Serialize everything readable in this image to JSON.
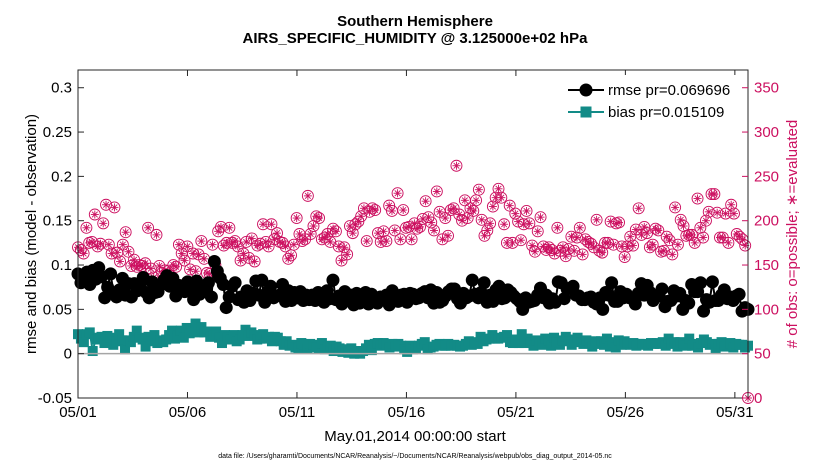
{
  "chart_data": {
    "type": "line",
    "title": "Southern Hemisphere",
    "subtitle": "AIRS_SPECIFIC_HUMIDITY @ 3.125000e+02 hPa",
    "xlabel": "May.01,2014 00:00:00 start",
    "ylabel": "rmse and bias (model - observation)",
    "ylabel_right": "# of obs: o=possible; ∗=evaluated",
    "footnote": "data file: /Users/gharamti/Documents/NCAR/Reanalysis/~/Documents/NCAR/Reanalysis/webpub/obs_diag_output_2014-05.nc",
    "xlim": [
      1,
      31.6
    ],
    "ylim": [
      -0.05,
      0.32
    ],
    "ylim_right": [
      0,
      370
    ],
    "x_ticks": [
      1,
      6,
      11,
      16,
      21,
      26,
      31
    ],
    "x_tick_labels": [
      "05/01",
      "05/06",
      "05/11",
      "05/16",
      "05/21",
      "05/26",
      "05/31"
    ],
    "y_ticks": [
      -0.05,
      0,
      0.05,
      0.1,
      0.15,
      0.2,
      0.25,
      0.3
    ],
    "y_tick_labels": [
      "-0.05",
      "0",
      "0.05",
      "0.1",
      "0.15",
      "0.2",
      "0.25",
      "0.3"
    ],
    "y_ticks_right": [
      0,
      50,
      100,
      150,
      200,
      250,
      300,
      350
    ],
    "y_tick_labels_right": [
      "0",
      "50",
      "100",
      "150",
      "200",
      "250",
      "300",
      "350"
    ],
    "legend_position": "top-right",
    "series": [
      {
        "name": "rmse pr=0.069696",
        "color": "#000000",
        "marker": "circle",
        "values": [
          0.09,
          0.08,
          0.086,
          0.092,
          0.078,
          0.094,
          0.084,
          0.097,
          0.087,
          0.063,
          0.075,
          0.09,
          0.068,
          0.064,
          0.072,
          0.085,
          0.066,
          0.079,
          0.064,
          0.079,
          0.071,
          0.078,
          0.086,
          0.069,
          0.063,
          0.081,
          0.069,
          0.07,
          0.078,
          0.083,
          0.088,
          0.076,
          0.085,
          0.065,
          0.077,
          0.071,
          0.07,
          0.081,
          0.073,
          0.061,
          0.082,
          0.067,
          0.074,
          0.07,
          0.08,
          0.064,
          0.104,
          0.093,
          0.085,
          0.078,
          0.052,
          0.064,
          0.076,
          0.08,
          0.061,
          0.064,
          0.058,
          0.071,
          0.06,
          0.068,
          0.082,
          0.066,
          0.083,
          0.058,
          0.07,
          0.076,
          0.063,
          0.065,
          0.066,
          0.078,
          0.059,
          0.071,
          0.06,
          0.069,
          0.063,
          0.07,
          0.06,
          0.066,
          0.061,
          0.066,
          0.06,
          0.069,
          0.067,
          0.058,
          0.071,
          0.062,
          0.083,
          0.061,
          0.065,
          0.056,
          0.07,
          0.062,
          0.066,
          0.055,
          0.068,
          0.057,
          0.064,
          0.069,
          0.056,
          0.067,
          0.059,
          0.057,
          0.064,
          0.063,
          0.066,
          0.055,
          0.071,
          0.063,
          0.059,
          0.066,
          0.067,
          0.058,
          0.068,
          0.067,
          0.062,
          0.063,
          0.068,
          0.07,
          0.063,
          0.072,
          0.057,
          0.069,
          0.058,
          0.06,
          0.065,
          0.07,
          0.073,
          0.073,
          0.062,
          0.057,
          0.068,
          0.063,
          0.065,
          0.083,
          0.067,
          0.063,
          0.069,
          0.08,
          0.058,
          0.066,
          0.059,
          0.072,
          0.076,
          0.062,
          0.063,
          0.072,
          0.069,
          0.065,
          0.062,
          0.059,
          0.05,
          0.063,
          0.058,
          0.059,
          0.06,
          0.066,
          0.074,
          0.063,
          0.066,
          0.057,
          0.062,
          0.058,
          0.081,
          0.08,
          0.062,
          0.073,
          0.074,
          0.076,
          0.066,
          0.065,
          0.061,
          0.061,
          0.063,
          0.064,
          0.058,
          0.056,
          0.063,
          0.05,
          0.069,
          0.066,
          0.08,
          0.059,
          0.059,
          0.07,
          0.063,
          0.067,
          0.063,
          0.062,
          0.056,
          0.068,
          0.079,
          0.066,
          0.077,
          0.069,
          0.06,
          0.064,
          0.065,
          0.073,
          0.053,
          0.059,
          0.06,
          0.071,
          0.065,
          0.068,
          0.05,
          0.06,
          0.057,
          0.078,
          0.07,
          0.07,
          0.08,
          0.048,
          0.061,
          0.058,
          0.081,
          0.06,
          0.06,
          0.066,
          0.072,
          0.062,
          0.064,
          0.06,
          0.065,
          0.067,
          0.048,
          0.052,
          0.05
        ]
      },
      {
        "name": "bias pr=0.015109",
        "color": "#128b87",
        "marker": "square",
        "values": [
          0.022,
          0.017,
          0.013,
          0.022,
          0.024,
          0.003,
          0.016,
          0.018,
          0.019,
          0.012,
          0.02,
          0.018,
          0.01,
          0.014,
          0.022,
          0.015,
          0.005,
          0.015,
          0.013,
          0.019,
          0.026,
          0.018,
          0.016,
          0.008,
          0.019,
          0.014,
          0.021,
          0.012,
          0.015,
          0.013,
          0.016,
          0.021,
          0.026,
          0.017,
          0.02,
          0.026,
          0.018,
          0.029,
          0.023,
          0.025,
          0.034,
          0.024,
          0.03,
          0.024,
          0.025,
          0.019,
          0.02,
          0.025,
          0.018,
          0.012,
          0.021,
          0.018,
          0.016,
          0.021,
          0.014,
          0.016,
          0.021,
          0.027,
          0.02,
          0.024,
          0.021,
          0.016,
          0.017,
          0.022,
          0.017,
          0.019,
          0.014,
          0.019,
          0.018,
          0.014,
          0.01,
          0.014,
          0.009,
          0.01,
          0.007,
          0.006,
          0.012,
          0.01,
          0.006,
          0.011,
          0.01,
          0.007,
          0.006,
          0.012,
          0.005,
          0.007,
          0.009,
          0.003,
          0.008,
          0.006,
          0.002,
          0.005,
          0.001,
          0.006,
          0.0,
          0.003,
          0.0,
          0.003,
          0.006,
          0.01,
          0.004,
          0.011,
          0.012,
          0.009,
          0.012,
          0.01,
          0.007,
          0.011,
          0.008,
          0.011,
          0.009,
          0.005,
          0.002,
          0.009,
          0.005,
          0.006,
          0.009,
          0.011,
          0.013,
          0.005,
          0.007,
          0.008,
          0.01,
          0.011,
          0.009,
          0.009,
          0.011,
          0.009,
          0.01,
          0.009,
          0.008,
          0.009,
          0.011,
          0.014,
          0.01,
          0.013,
          0.011,
          0.019,
          0.014,
          0.016,
          0.017,
          0.021,
          0.017,
          0.017,
          0.018,
          0.019,
          0.021,
          0.013,
          0.012,
          0.016,
          0.012,
          0.022,
          0.012,
          0.017,
          0.013,
          0.009,
          0.015,
          0.014,
          0.01,
          0.017,
          0.015,
          0.009,
          0.018,
          0.013,
          0.01,
          0.015,
          0.019,
          0.014,
          0.01,
          0.016,
          0.018,
          0.013,
          0.011,
          0.015,
          0.012,
          0.008,
          0.014,
          0.011,
          0.014,
          0.01,
          0.017,
          0.008,
          0.013,
          0.007,
          0.015,
          0.01,
          0.014,
          0.011,
          0.01,
          0.012,
          0.009,
          0.011,
          0.011,
          0.01,
          0.009,
          0.012,
          0.011,
          0.012,
          0.011,
          0.013,
          0.009,
          0.017,
          0.011,
          0.013,
          0.008,
          0.013,
          0.011,
          0.009,
          0.017,
          0.009,
          0.011,
          0.007,
          0.012,
          0.016,
          0.013,
          0.01,
          0.011,
          0.006,
          0.011,
          0.013,
          0.008,
          0.01,
          0.012,
          0.007,
          0.011,
          0.01,
          0.01,
          0.007,
          0.009
        ]
      },
      {
        "name": "# of obs possible / evaluated",
        "axis": "right",
        "color": "#cc1060",
        "marker": "circle-asterisk",
        "values": [
          170,
          167,
          163,
          192,
          175,
          176,
          207,
          171,
          174,
          197,
          218,
          173,
          163,
          215,
          164,
          154,
          173,
          187,
          165,
          149,
          156,
          148,
          150,
          149,
          152,
          192,
          146,
          136,
          184,
          149,
          141,
          144,
          143,
          138,
          150,
          148,
          173,
          163,
          155,
          171,
          145,
          163,
          143,
          162,
          177,
          157,
          141,
          140,
          173,
          150,
          188,
          193,
          172,
          175,
          192,
          175,
          177,
          171,
          155,
          163,
          176,
          158,
          180,
          154,
          172,
          174,
          196,
          176,
          171,
          196,
          179,
          186,
          176,
          175,
          171,
          157,
          161,
          173,
          203,
          185,
          177,
          179,
          228,
          185,
          194,
          205,
          203,
          179,
          181,
          185,
          176,
          191,
          188,
          171,
          155,
          170,
          162,
          194,
          186,
          196,
          199,
          205,
          214,
          177,
          210,
          214,
          212,
          186,
          176,
          188,
          177,
          217,
          211,
          189,
          231,
          179,
          212,
          192,
          193,
          179,
          197,
          191,
          193,
          202,
          222,
          204,
          198,
          189,
          233,
          210,
          179,
          203,
          183,
          212,
          214,
          262,
          207,
          200,
          223,
          203,
          214,
          211,
          223,
          235,
          201,
          183,
          189,
          197,
          216,
          226,
          236,
          226,
          196,
          175,
          217,
          175,
          208,
          199,
          178,
          196,
          211,
          197,
          172,
          165,
          188,
          204,
          171,
          167,
          170,
          167,
          163,
          192,
          166,
          170,
          160,
          168,
          182,
          166,
          181,
          192,
          162,
          179,
          176,
          174,
          170,
          201,
          166,
          164,
          175,
          175,
          199,
          173,
          197,
          198,
          171,
          159,
          171,
          182,
          172,
          190,
          214,
          184,
          193,
          186,
          170,
          173,
          191,
          189,
          165,
          166,
          182,
          178,
          162,
          215,
          173,
          201,
          194,
          183,
          184,
          184,
          175,
          225,
          192,
          181,
          200,
          210,
          230,
          230,
          209,
          181,
          181,
          208,
          175,
          218,
          208,
          185,
          182,
          179,
          172,
          0
        ]
      }
    ]
  }
}
